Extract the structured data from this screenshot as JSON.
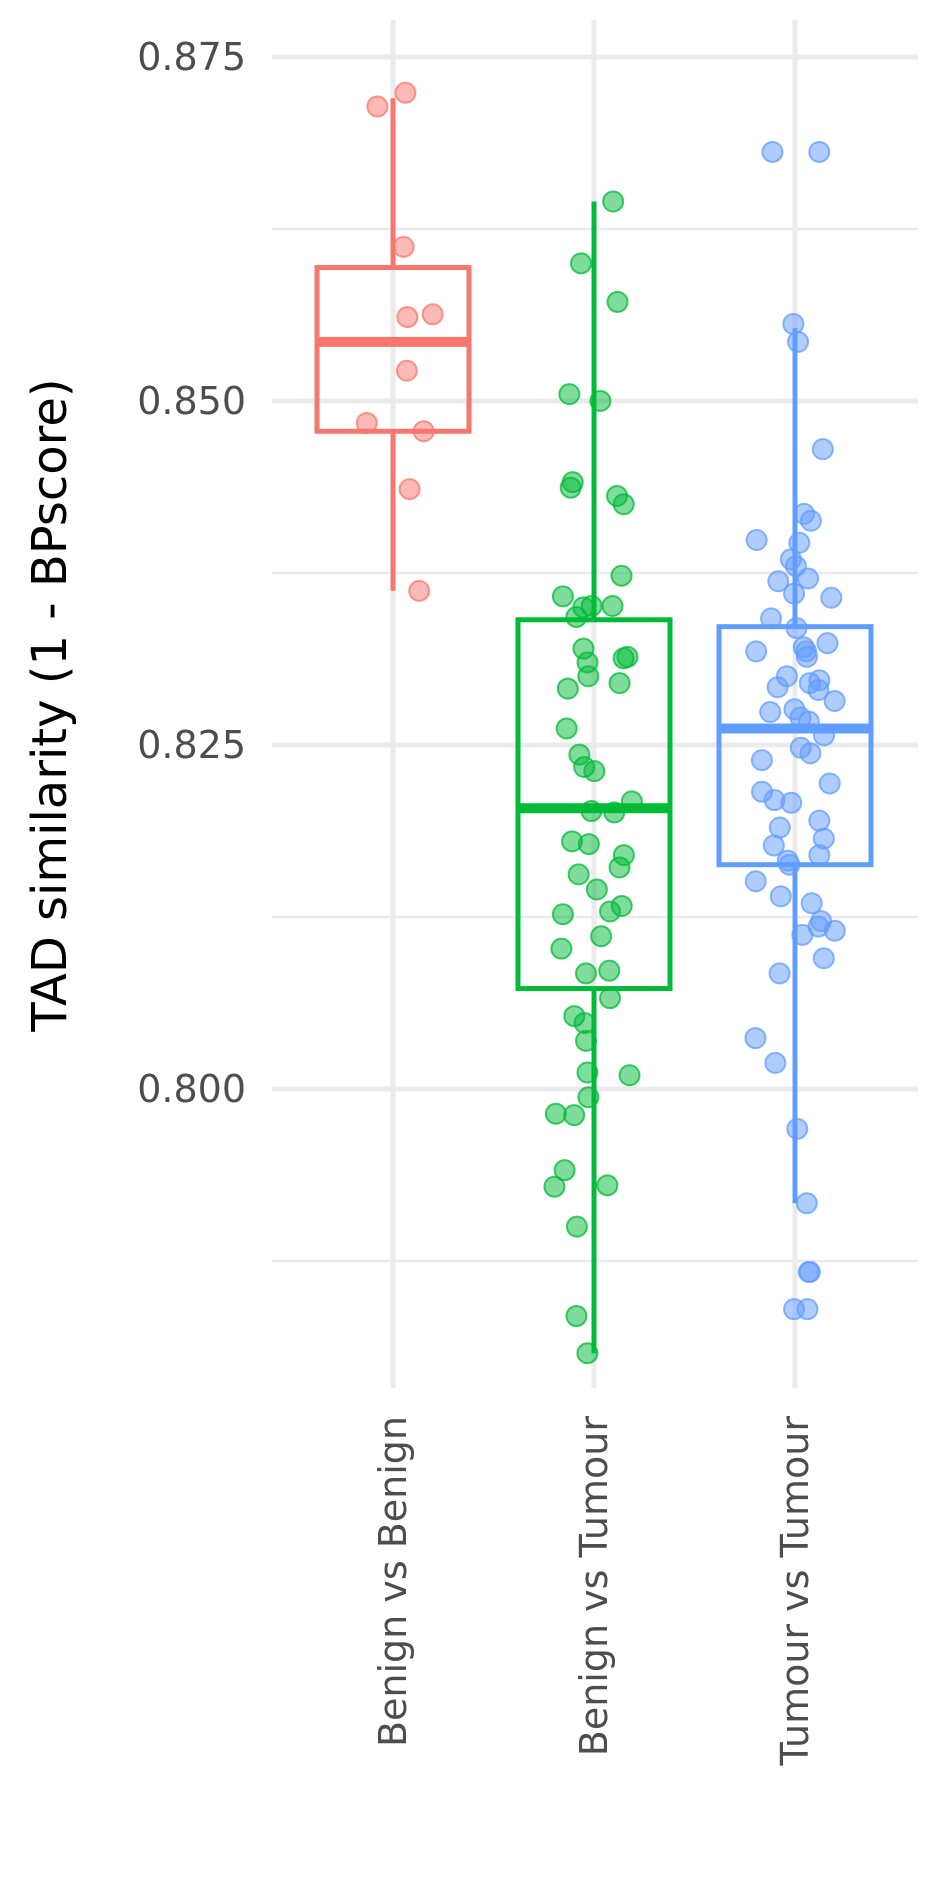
{
  "chart_data": {
    "type": "box",
    "title": "",
    "xlabel": "",
    "ylabel": "TAD similarity (1 - BPscore)",
    "ylim": [
      0.7795,
      0.8775
    ],
    "y_ticks": [
      0.8,
      0.825,
      0.85,
      0.875
    ],
    "y_tick_labels": [
      "0.800",
      "0.825",
      "0.850",
      "0.875"
    ],
    "y_minor_ticks": [
      0.7875,
      0.8125,
      0.8375,
      0.8625
    ],
    "grid": true,
    "legend": "none",
    "categories": [
      "Benign vs Benign",
      "Benign vs Tumour",
      "Tumour vs Tumour"
    ],
    "series": [
      {
        "color": "#f8766d",
        "box": {
          "whisker_low": 0.8362,
          "q1": 0.8478,
          "median": 0.8543,
          "q3": 0.8597,
          "whisker_high": 0.872
        },
        "points": [
          0.8724,
          0.8714,
          0.8612,
          0.8563,
          0.8561,
          0.8522,
          0.8484,
          0.8478,
          0.8436,
          0.8362
        ]
      },
      {
        "color": "#00ba38",
        "box": {
          "whisker_low": 0.7808,
          "q1": 0.8073,
          "median": 0.8204,
          "q3": 0.8341,
          "whisker_high": 0.8645
        },
        "points": [
          0.8645,
          0.86,
          0.8572,
          0.8505,
          0.85,
          0.8441,
          0.8437,
          0.8431,
          0.8425,
          0.8373,
          0.8358,
          0.8351,
          0.8351,
          0.835,
          0.8343,
          0.832,
          0.8314,
          0.8313,
          0.831,
          0.83,
          0.8295,
          0.8291,
          0.8262,
          0.8243,
          0.8234,
          0.8231,
          0.8209,
          0.8202,
          0.8201,
          0.818,
          0.8178,
          0.817,
          0.8161,
          0.8156,
          0.8145,
          0.8133,
          0.8129,
          0.8127,
          0.8111,
          0.8102,
          0.8086,
          0.8084,
          0.8066,
          0.8053,
          0.8048,
          0.8035,
          0.8012,
          0.801,
          0.7994,
          0.7982,
          0.7981,
          0.7941,
          0.793,
          0.7929,
          0.79,
          0.7835,
          0.7808
        ]
      },
      {
        "color": "#619cff",
        "box": {
          "whisker_low": 0.7917,
          "q1": 0.8163,
          "median": 0.8262,
          "q3": 0.8336,
          "whisker_high": 0.8553
        },
        "points": [
          0.8681,
          0.8681,
          0.8556,
          0.8543,
          0.8465,
          0.8418,
          0.8413,
          0.8399,
          0.8397,
          0.8385,
          0.838,
          0.8371,
          0.8369,
          0.836,
          0.8357,
          0.8342,
          0.8335,
          0.8324,
          0.8321,
          0.8318,
          0.8318,
          0.8314,
          0.83,
          0.8297,
          0.8295,
          0.8292,
          0.829,
          0.8282,
          0.8276,
          0.8274,
          0.827,
          0.8267,
          0.8257,
          0.8248,
          0.8244,
          0.8239,
          0.8222,
          0.8216,
          0.821,
          0.8208,
          0.8195,
          0.819,
          0.8182,
          0.8177,
          0.817,
          0.8166,
          0.8163,
          0.8151,
          0.814,
          0.8135,
          0.8122,
          0.8118,
          0.8115,
          0.8112,
          0.8095,
          0.8084,
          0.8037,
          0.8019,
          0.7971,
          0.7917,
          0.7867,
          0.7867,
          0.784,
          0.784
        ]
      }
    ]
  }
}
